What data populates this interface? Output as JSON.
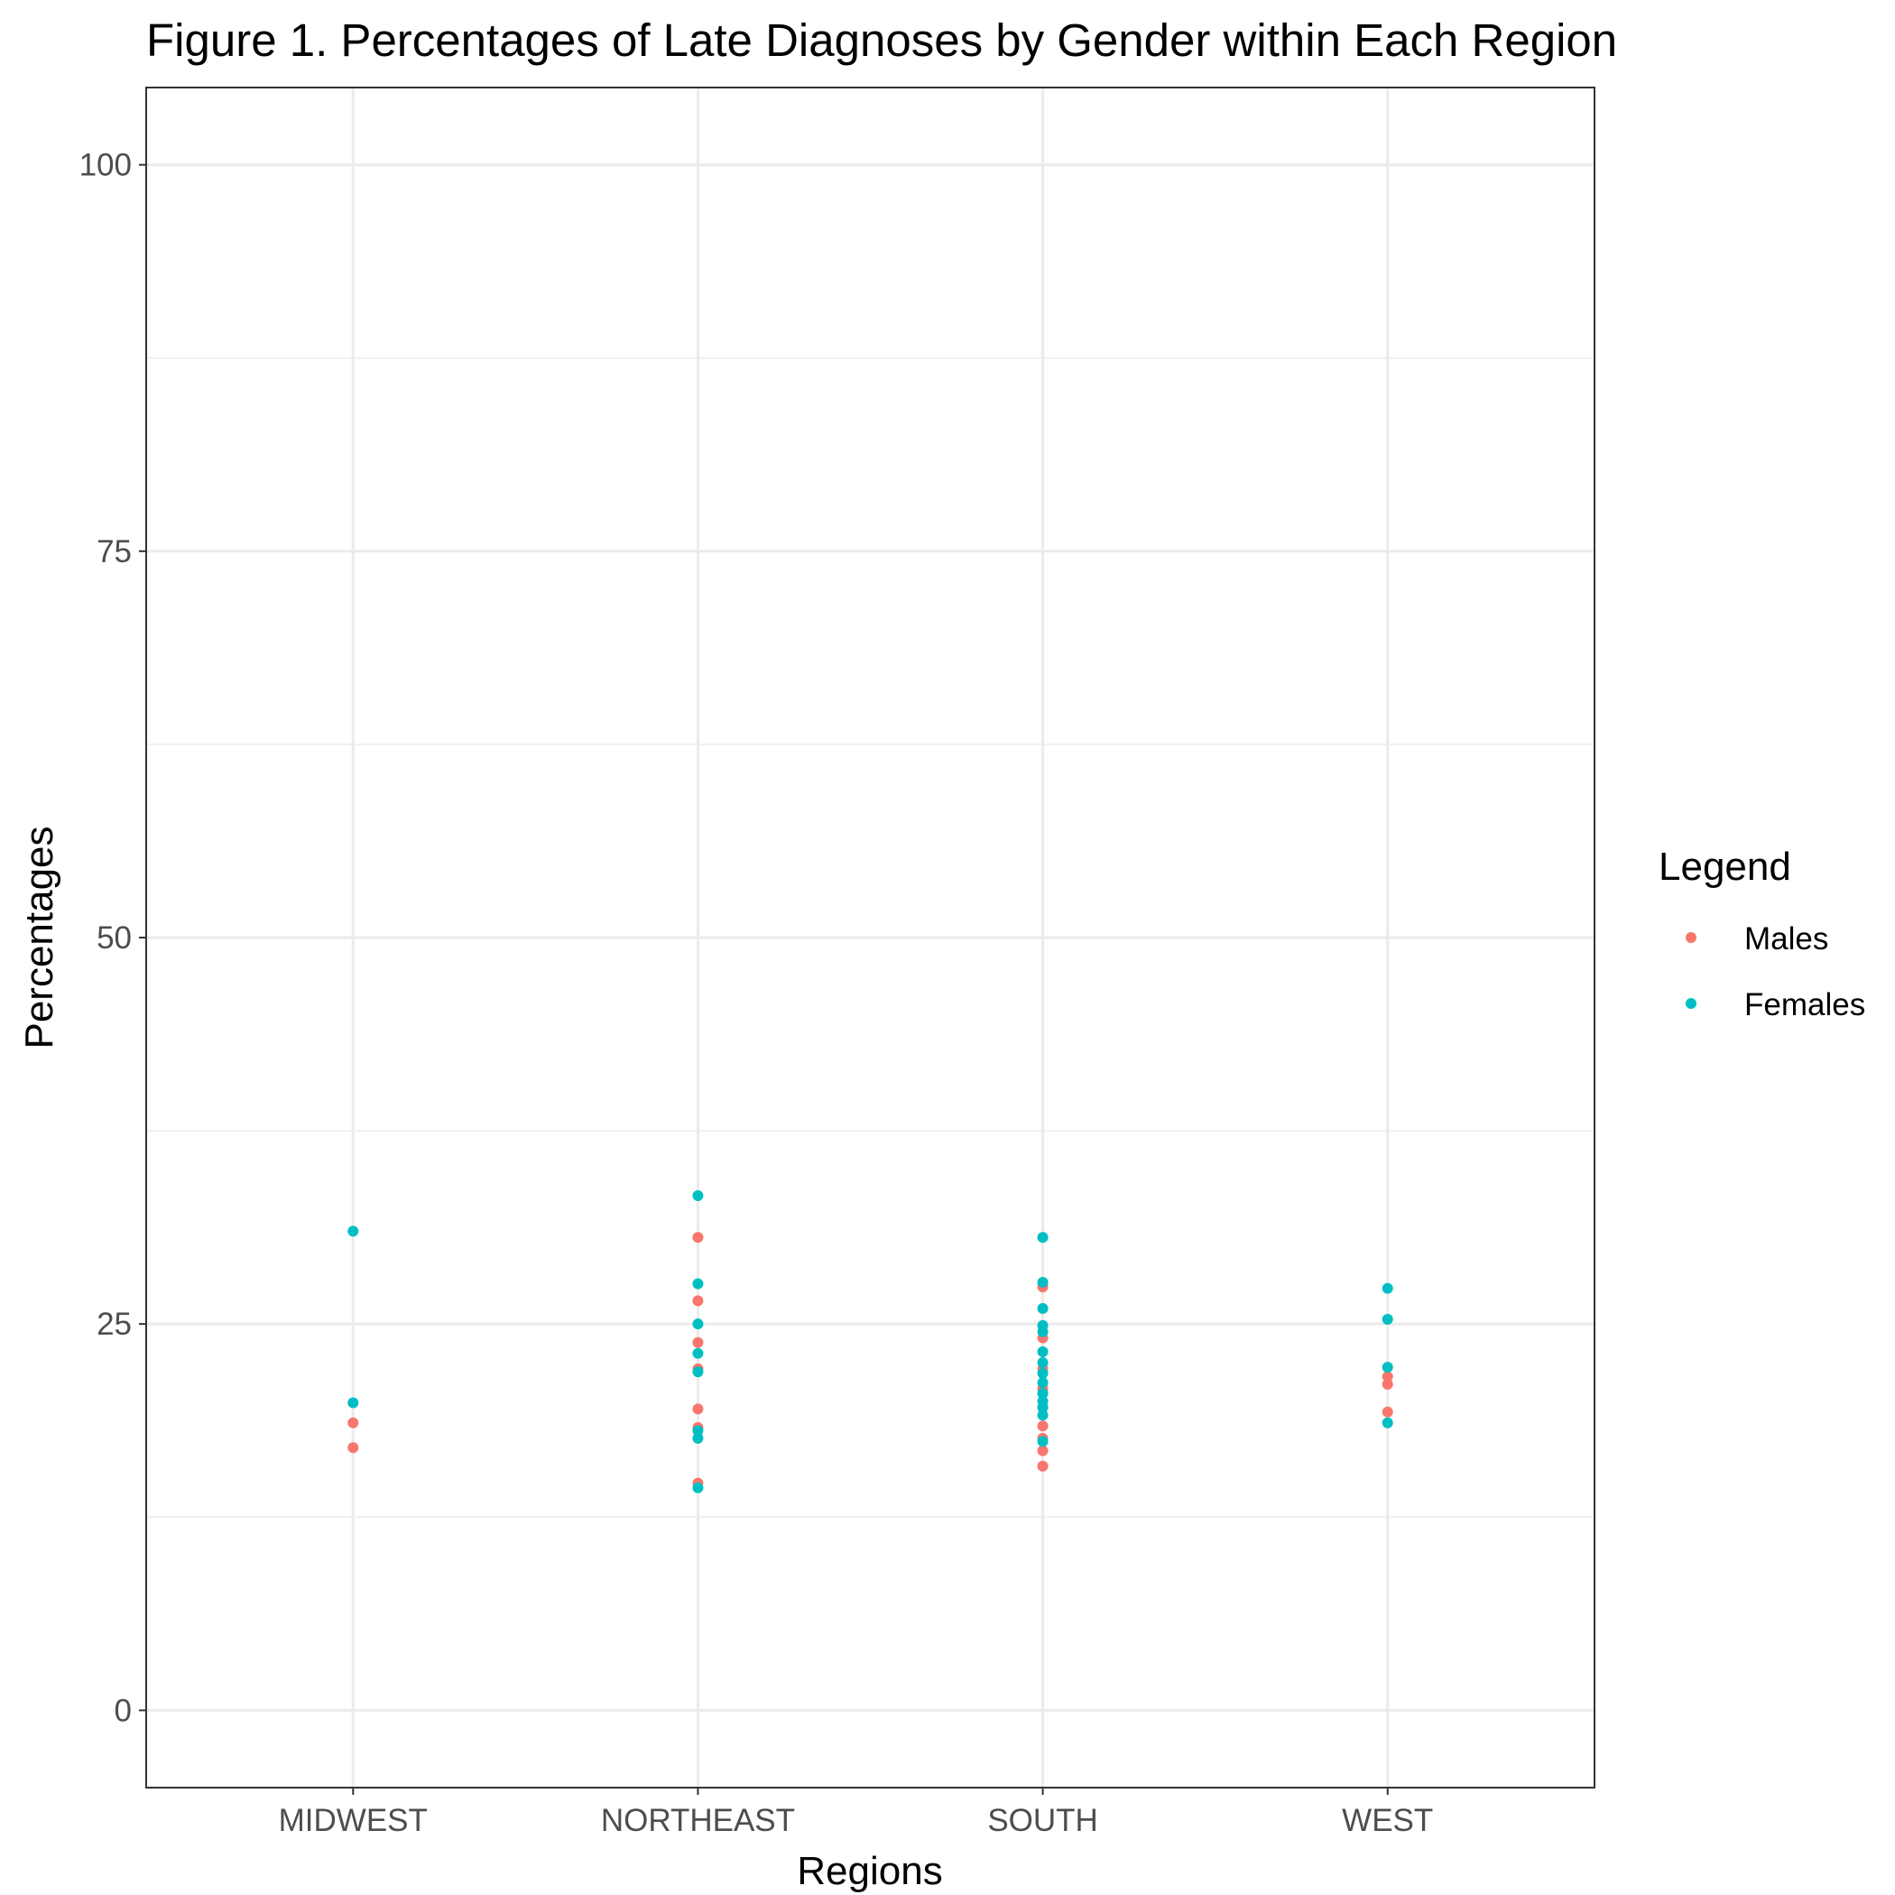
{
  "chart_data": {
    "type": "scatter",
    "title": "Figure 1. Percentages of Late Diagnoses by Gender within Each Region",
    "xlabel": "Regions",
    "ylabel": "Percentages",
    "categories": [
      "MIDWEST",
      "NORTHEAST",
      "SOUTH",
      "WEST"
    ],
    "ylim": [
      -5,
      105
    ],
    "yticks": [
      "0",
      "25",
      "50",
      "75",
      "100"
    ],
    "grid": true,
    "legend": {
      "title": "Legend",
      "position": "right"
    },
    "series": [
      {
        "name": "Males",
        "color": "#F8766D",
        "points": [
          {
            "x": "MIDWEST",
            "y": 18.6
          },
          {
            "x": "MIDWEST",
            "y": 17.0
          },
          {
            "x": "NORTHEAST",
            "y": 30.6
          },
          {
            "x": "NORTHEAST",
            "y": 26.5
          },
          {
            "x": "NORTHEAST",
            "y": 23.8
          },
          {
            "x": "NORTHEAST",
            "y": 22.1
          },
          {
            "x": "NORTHEAST",
            "y": 19.5
          },
          {
            "x": "NORTHEAST",
            "y": 18.3
          },
          {
            "x": "NORTHEAST",
            "y": 14.7
          },
          {
            "x": "SOUTH",
            "y": 27.4
          },
          {
            "x": "SOUTH",
            "y": 24.1
          },
          {
            "x": "SOUTH",
            "y": 22.1
          },
          {
            "x": "SOUTH",
            "y": 20.8
          },
          {
            "x": "SOUTH",
            "y": 19.6
          },
          {
            "x": "SOUTH",
            "y": 18.4
          },
          {
            "x": "SOUTH",
            "y": 17.6
          },
          {
            "x": "SOUTH",
            "y": 16.8
          },
          {
            "x": "SOUTH",
            "y": 15.8
          },
          {
            "x": "WEST",
            "y": 21.6
          },
          {
            "x": "WEST",
            "y": 21.1
          },
          {
            "x": "WEST",
            "y": 19.3
          }
        ]
      },
      {
        "name": "Females",
        "color": "#00BFC4",
        "points": [
          {
            "x": "MIDWEST",
            "y": 31.0
          },
          {
            "x": "MIDWEST",
            "y": 19.9
          },
          {
            "x": "NORTHEAST",
            "y": 33.3
          },
          {
            "x": "NORTHEAST",
            "y": 27.6
          },
          {
            "x": "NORTHEAST",
            "y": 25.0
          },
          {
            "x": "NORTHEAST",
            "y": 23.1
          },
          {
            "x": "NORTHEAST",
            "y": 21.9
          },
          {
            "x": "NORTHEAST",
            "y": 18.1
          },
          {
            "x": "NORTHEAST",
            "y": 17.6
          },
          {
            "x": "NORTHEAST",
            "y": 14.4
          },
          {
            "x": "SOUTH",
            "y": 30.6
          },
          {
            "x": "SOUTH",
            "y": 27.7
          },
          {
            "x": "SOUTH",
            "y": 26.0
          },
          {
            "x": "SOUTH",
            "y": 24.9
          },
          {
            "x": "SOUTH",
            "y": 24.5
          },
          {
            "x": "SOUTH",
            "y": 23.2
          },
          {
            "x": "SOUTH",
            "y": 22.5
          },
          {
            "x": "SOUTH",
            "y": 21.8
          },
          {
            "x": "SOUTH",
            "y": 21.2
          },
          {
            "x": "SOUTH",
            "y": 20.5
          },
          {
            "x": "SOUTH",
            "y": 20.0
          },
          {
            "x": "SOUTH",
            "y": 19.6
          },
          {
            "x": "SOUTH",
            "y": 19.1
          },
          {
            "x": "SOUTH",
            "y": 17.4
          },
          {
            "x": "WEST",
            "y": 27.3
          },
          {
            "x": "WEST",
            "y": 25.3
          },
          {
            "x": "WEST",
            "y": 22.2
          },
          {
            "x": "WEST",
            "y": 18.6
          }
        ]
      }
    ]
  }
}
